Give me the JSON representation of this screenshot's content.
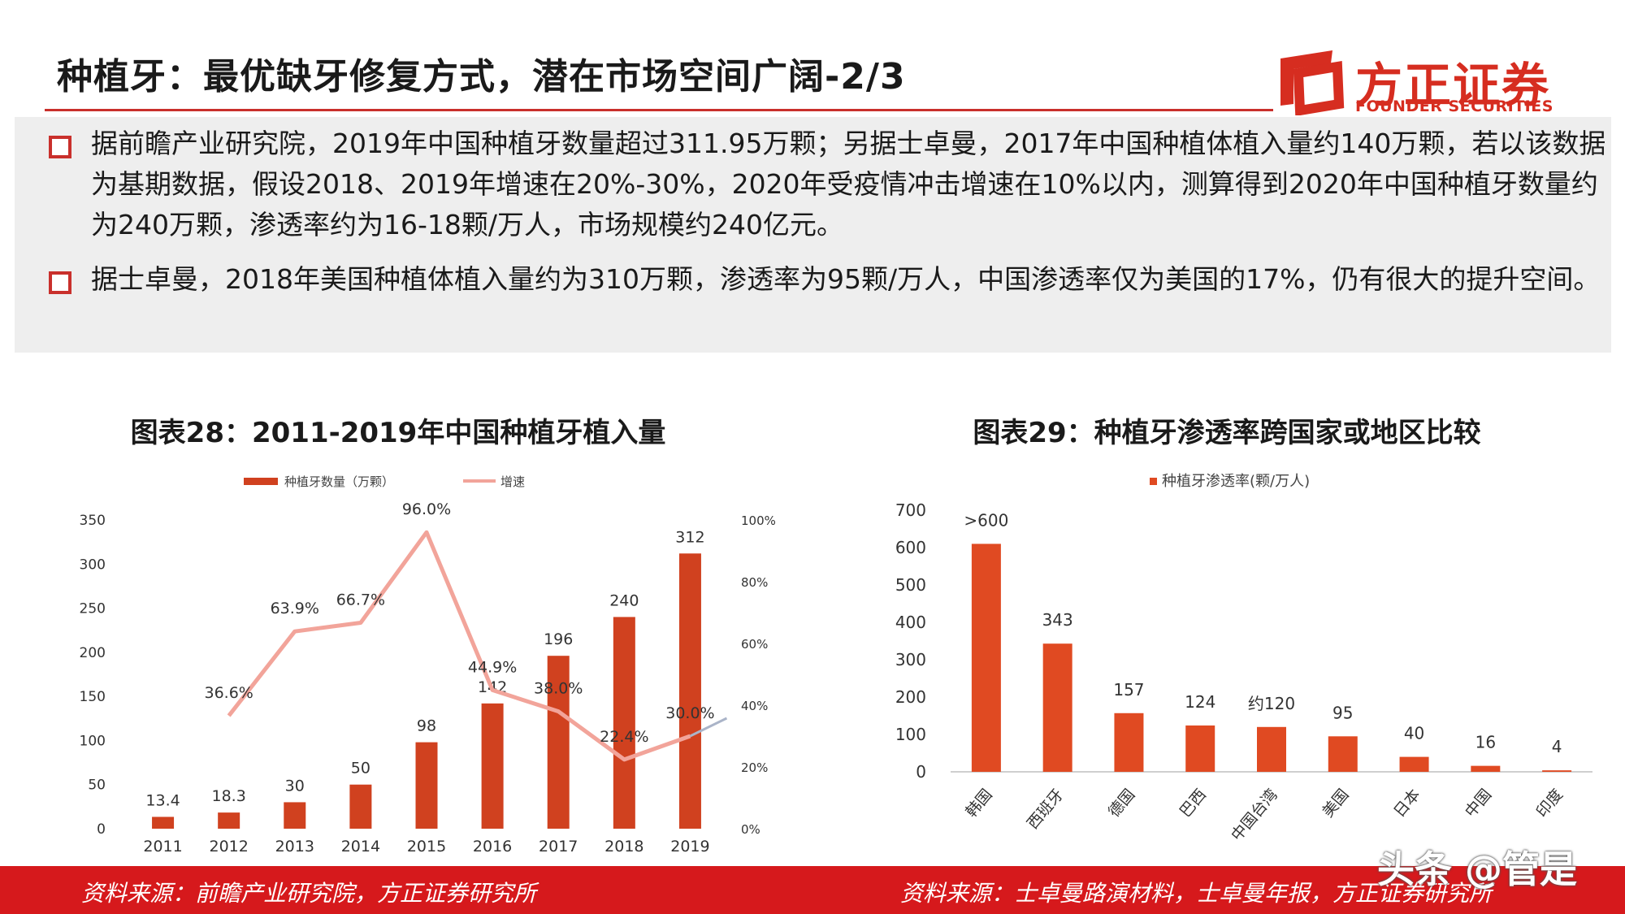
{
  "header": {
    "title": "种植牙：最优缺牙修复方式，潜在市场空间广阔-2/3",
    "logo_cn": "方正证券",
    "logo_en": "FOUNDER SECURITIES",
    "accent_color": "#d62d20"
  },
  "summary": {
    "bullets": [
      "据前瞻产业研究院，2019年中国种植牙数量超过311.95万颗；另据士卓曼，2017年中国种植体植入量约140万颗，若以该数据为基期数据，假设2018、2019年增速在20%-30%，2020年受疫情冲击增速在10%以内，测算得到2020年中国种植牙数量约为240万颗，渗透率约为16-18颗/万人，市场规模约240亿元。",
      "据士卓曼，2018年美国种植体植入量约为310万颗，渗透率为95颗/万人，中国渗透率仅为美国的17%，仍有很大的提升空间。"
    ]
  },
  "charts": {
    "left_title": "图表28：2011-2019年中国种植牙植入量",
    "right_title": "图表29：种植牙渗透率跨国家或地区比较"
  },
  "footer": {
    "left_source": "资料来源：前瞻产业研究院，方正证券研究所",
    "right_source": "资料来源：士卓曼路演材料，士卓曼年报，方正证券研究所",
    "watermark": "头条 @管是"
  },
  "chart_data": [
    {
      "type": "bar",
      "title": "图表28：2011-2019年中国种植牙植入量",
      "categories": [
        "2011",
        "2012",
        "2013",
        "2014",
        "2015",
        "2016",
        "2017",
        "2018",
        "2019"
      ],
      "series": [
        {
          "name": "种植牙数量（万颗）",
          "type": "bar",
          "axis": "left",
          "color": "#d0411f",
          "values": [
            13.4,
            18.3,
            30,
            50,
            98,
            142,
            196,
            240,
            312
          ],
          "labels": [
            "13.4",
            "18.3",
            "30",
            "50",
            "98",
            "142",
            "196",
            "240",
            "312"
          ]
        },
        {
          "name": "增速",
          "type": "line",
          "axis": "right",
          "color": "#f2a49a",
          "values": [
            null,
            36.6,
            63.9,
            66.7,
            96.0,
            44.9,
            38.0,
            22.4,
            30.0
          ],
          "labels": [
            "",
            "36.6%",
            "63.9%",
            "66.7%",
            "96.0%",
            "44.9%",
            "38.0%",
            "22.4%",
            "30.0%"
          ]
        }
      ],
      "y_left": {
        "min": 0,
        "max": 350,
        "ticks": [
          "0",
          "50",
          "100",
          "150",
          "200",
          "250",
          "300",
          "350"
        ]
      },
      "y_right": {
        "min": 0,
        "max": 100,
        "ticks": [
          "0%",
          "20%",
          "40%",
          "60%",
          "80%",
          "100%"
        ]
      },
      "legend": "top-center",
      "grid": false
    },
    {
      "type": "bar",
      "title": "图表29：种植牙渗透率跨国家或地区比较",
      "categories": [
        "韩国",
        "西班牙",
        "德国",
        "巴西",
        "中国台湾",
        "美国",
        "日本",
        "中国",
        "印度"
      ],
      "series": [
        {
          "name": "种植牙渗透率(颗/万人)",
          "color": "#e04a22",
          "values": [
            610,
            343,
            157,
            124,
            120,
            95,
            40,
            16,
            4
          ],
          "labels": [
            ">600",
            "343",
            "157",
            "124",
            "约120",
            "95",
            "40",
            "16",
            "4"
          ]
        }
      ],
      "y": {
        "min": 0,
        "max": 700,
        "ticks": [
          "0",
          "100",
          "200",
          "300",
          "400",
          "500",
          "600",
          "700"
        ]
      },
      "legend": "top-center",
      "grid": false
    }
  ]
}
